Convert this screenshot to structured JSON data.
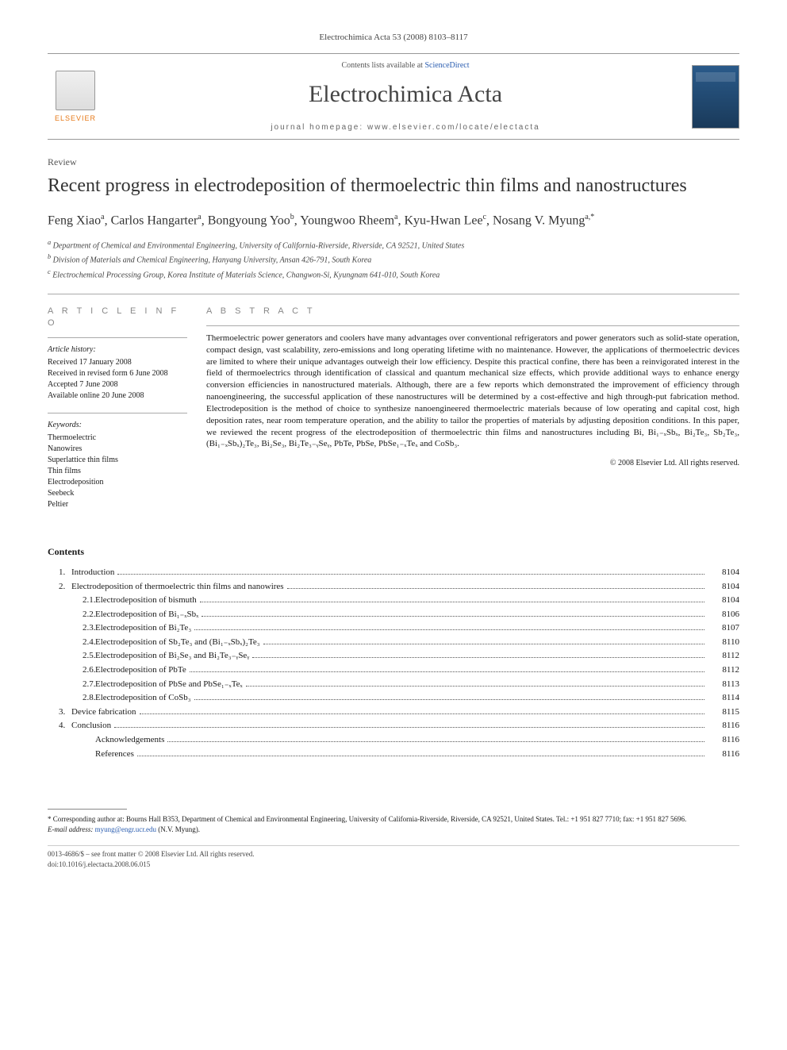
{
  "header_citation": "Electrochimica Acta 53 (2008) 8103–8117",
  "masthead": {
    "publisher": "ELSEVIER",
    "contents_prefix": "Contents lists available at ",
    "contents_link": "ScienceDirect",
    "journal": "Electrochimica Acta",
    "homepage_prefix": "journal homepage: ",
    "homepage_url": "www.elsevier.com/locate/electacta"
  },
  "article_type": "Review",
  "title": "Recent progress in electrodeposition of thermoelectric thin films and nanostructures",
  "authors_html": "Feng Xiao<sup>a</sup>, Carlos Hangarter<sup>a</sup>, Bongyoung Yoo<sup>b</sup>, Youngwoo Rheem<sup>a</sup>, Kyu-Hwan Lee<sup>c</sup>, Nosang V. Myung<sup>a,*</sup>",
  "affiliations": {
    "a": "Department of Chemical and Environmental Engineering, University of California-Riverside, Riverside, CA 92521, United States",
    "b": "Division of Materials and Chemical Engineering, Hanyang University, Ansan 426-791, South Korea",
    "c": "Electrochemical Processing Group, Korea Institute of Materials Science, Changwon-Si, Kyungnam 641-010, South Korea"
  },
  "info": {
    "heading": "A R T I C L E   I N F O",
    "history_label": "Article history:",
    "history": [
      "Received 17 January 2008",
      "Received in revised form 6 June 2008",
      "Accepted 7 June 2008",
      "Available online 20 June 2008"
    ],
    "keywords_label": "Keywords:",
    "keywords": [
      "Thermoelectric",
      "Nanowires",
      "Superlattice thin films",
      "Thin films",
      "Electrodeposition",
      "Seebeck",
      "Peltier"
    ]
  },
  "abstract": {
    "heading": "A B S T R A C T",
    "text": "Thermoelectric power generators and coolers have many advantages over conventional refrigerators and power generators such as solid-state operation, compact design, vast scalability, zero-emissions and long operating lifetime with no maintenance. However, the applications of thermoelectric devices are limited to where their unique advantages outweigh their low efficiency. Despite this practical confine, there has been a reinvigorated interest in the field of thermoelectrics through identification of classical and quantum mechanical size effects, which provide additional ways to enhance energy conversion efficiencies in nanostructured materials. Although, there are a few reports which demonstrated the improvement of efficiency through nanoengineering, the successful application of these nanostructures will be determined by a cost-effective and high through-put fabrication method. Electrodeposition is the method of choice to synthesize nanoengineered thermoelectric materials because of low operating and capital cost, high deposition rates, near room temperature operation, and the ability to tailor the properties of materials by adjusting deposition conditions. In this paper, we reviewed the recent progress of the electrodeposition of thermoelectric thin films and nanostructures including Bi, Bi₁₋ₓSbₓ, Bi₂Te₃, Sb₂Te₃, (Bi₁₋ₓSbₓ)₂Te₃, Bi₂Se₃, Bi₂Te₃₋ᵧSeᵧ, PbTe, PbSe, PbSe₁₋ₓTeₓ and CoSb₃.",
    "copyright": "© 2008 Elsevier Ltd. All rights reserved."
  },
  "contents": {
    "heading": "Contents",
    "items": [
      {
        "num": "1.",
        "title": "Introduction",
        "page": "8104",
        "sub": false
      },
      {
        "num": "2.",
        "title": "Electrodeposition of thermoelectric thin films and nanowires",
        "page": "8104",
        "sub": false
      },
      {
        "num": "2.1.",
        "title": "Electrodeposition of bismuth",
        "page": "8104",
        "sub": true
      },
      {
        "num": "2.2.",
        "title": "Electrodeposition of Bi₁₋ₓSbₓ",
        "page": "8106",
        "sub": true
      },
      {
        "num": "2.3.",
        "title": "Electrodeposition of Bi₂Te₃",
        "page": "8107",
        "sub": true
      },
      {
        "num": "2.4.",
        "title": "Electrodeposition of Sb₂Te₃ and (Bi₁₋ₓSbₓ)₂Te₃",
        "page": "8110",
        "sub": true
      },
      {
        "num": "2.5.",
        "title": "Electrodeposition of Bi₂Se₃ and Bi₂Te₃₋ᵧSeᵧ",
        "page": "8112",
        "sub": true
      },
      {
        "num": "2.6.",
        "title": "Electrodeposition of PbTe",
        "page": "8112",
        "sub": true
      },
      {
        "num": "2.7.",
        "title": "Electrodeposition of PbSe and PbSe₁₋ₓTeₓ",
        "page": "8113",
        "sub": true
      },
      {
        "num": "2.8.",
        "title": "Electrodeposition of CoSb₃",
        "page": "8114",
        "sub": true
      },
      {
        "num": "3.",
        "title": "Device fabrication",
        "page": "8115",
        "sub": false
      },
      {
        "num": "4.",
        "title": "Conclusion",
        "page": "8116",
        "sub": false
      },
      {
        "num": "",
        "title": "Acknowledgements",
        "page": "8116",
        "sub": false,
        "noind": true
      },
      {
        "num": "",
        "title": "References",
        "page": "8116",
        "sub": false,
        "noind": true
      }
    ]
  },
  "footnote": {
    "corr": "* Corresponding author at: Bourns Hall B353, Department of Chemical and Environmental Engineering, University of California-Riverside, Riverside, CA 92521, United States. Tel.: +1 951 827 7710; fax: +1 951 827 5696.",
    "email_label": "E-mail address: ",
    "email": "myung@engr.ucr.edu",
    "email_suffix": " (N.V. Myung)."
  },
  "footer": {
    "line1": "0013-4686/$ – see front matter © 2008 Elsevier Ltd. All rights reserved.",
    "line2": "doi:10.1016/j.electacta.2008.06.015"
  }
}
